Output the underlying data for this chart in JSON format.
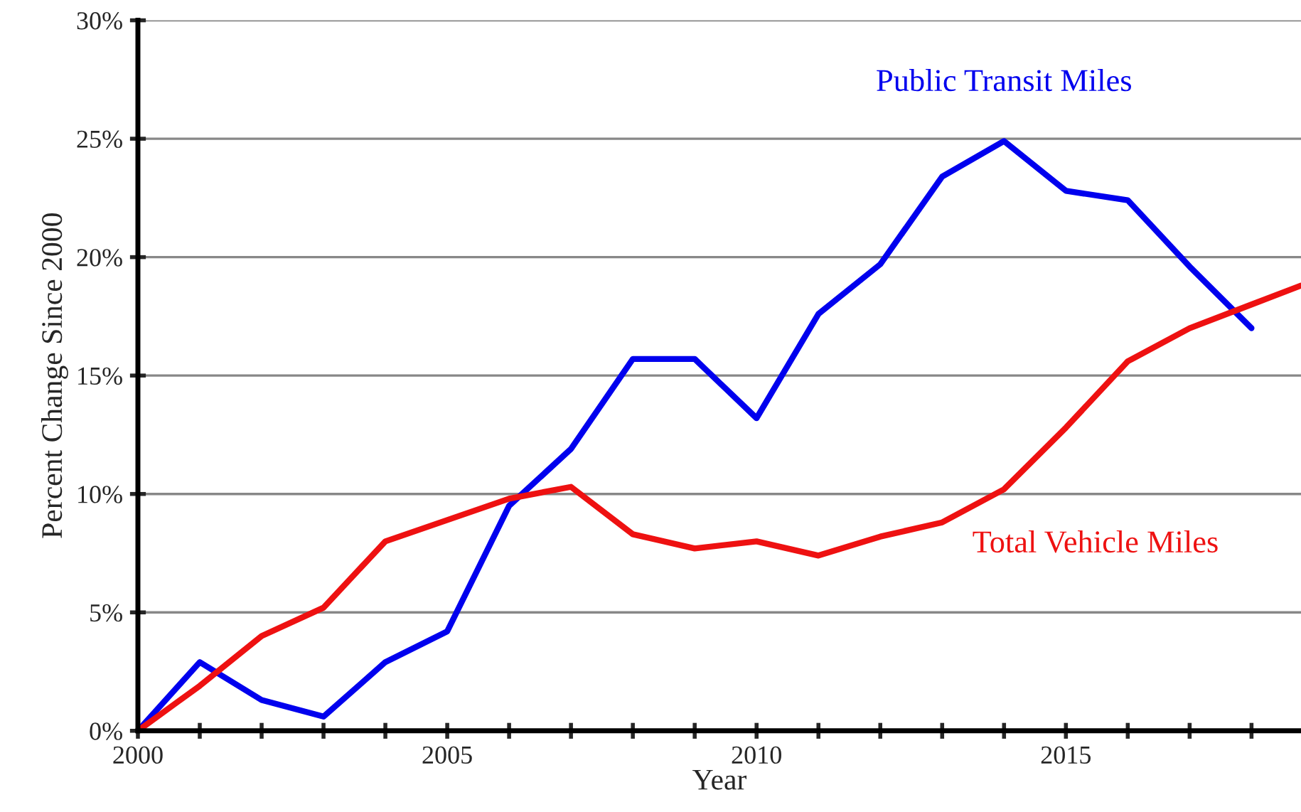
{
  "chart_data": {
    "type": "line",
    "xlabel": "Year",
    "ylabel": "Percent Change Since 2000",
    "xlim": [
      2000,
      2018.8
    ],
    "xticks": [
      2000,
      {
        "value": 2001,
        "label": null
      },
      {
        "value": 2002,
        "label": null
      },
      {
        "value": 2003,
        "label": null
      },
      {
        "value": 2004,
        "label": null
      },
      2005,
      {
        "value": 2006,
        "label": null
      },
      {
        "value": 2007,
        "label": null
      },
      {
        "value": 2008,
        "label": null
      },
      {
        "value": 2009,
        "label": null
      },
      2010,
      {
        "value": 2011,
        "label": null
      },
      {
        "value": 2012,
        "label": null
      },
      {
        "value": 2013,
        "label": null
      },
      {
        "value": 2014,
        "label": null
      },
      2015,
      {
        "value": 2016,
        "label": null
      },
      {
        "value": 2017,
        "label": null
      },
      {
        "value": 2018,
        "label": null
      }
    ],
    "ylim": [
      0,
      30
    ],
    "yticks": [
      {
        "value": 0,
        "label": "0%"
      },
      {
        "value": 5,
        "label": "5%"
      },
      {
        "value": 10,
        "label": "10%"
      },
      {
        "value": 15,
        "label": "15%"
      },
      {
        "value": 20,
        "label": "20%"
      },
      {
        "value": 25,
        "label": "25%"
      },
      {
        "value": 30,
        "label": "30%"
      }
    ],
    "grid": "y",
    "legend": false,
    "line_style": "solid",
    "series": [
      {
        "name": "Public Transit Miles",
        "color": "#0000ee",
        "x": [
          2000,
          2001,
          2002,
          2003,
          2004,
          2005,
          2006,
          2007,
          2008,
          2009,
          2010,
          2011,
          2012,
          2013,
          2014,
          2015,
          2016,
          2017,
          2018
        ],
        "values": [
          0,
          2.9,
          1.3,
          0.6,
          2.9,
          4.2,
          9.5,
          11.9,
          15.7,
          15.7,
          13.2,
          17.6,
          19.7,
          23.4,
          24.9,
          22.8,
          22.4,
          19.6,
          17.0
        ]
      },
      {
        "name": "Total Vehicle Miles",
        "color": "#ee1111",
        "x": [
          2000,
          2001,
          2002,
          2003,
          2004,
          2005,
          2006,
          2007,
          2008,
          2009,
          2010,
          2011,
          2012,
          2013,
          2014,
          2015,
          2016,
          2017,
          2018,
          2018.8
        ],
        "values": [
          0,
          1.9,
          4.0,
          5.2,
          8.0,
          8.9,
          9.8,
          10.3,
          8.3,
          7.7,
          8.0,
          7.4,
          8.2,
          8.8,
          10.2,
          12.8,
          15.6,
          17.0,
          18.0,
          18.8
        ]
      }
    ]
  }
}
